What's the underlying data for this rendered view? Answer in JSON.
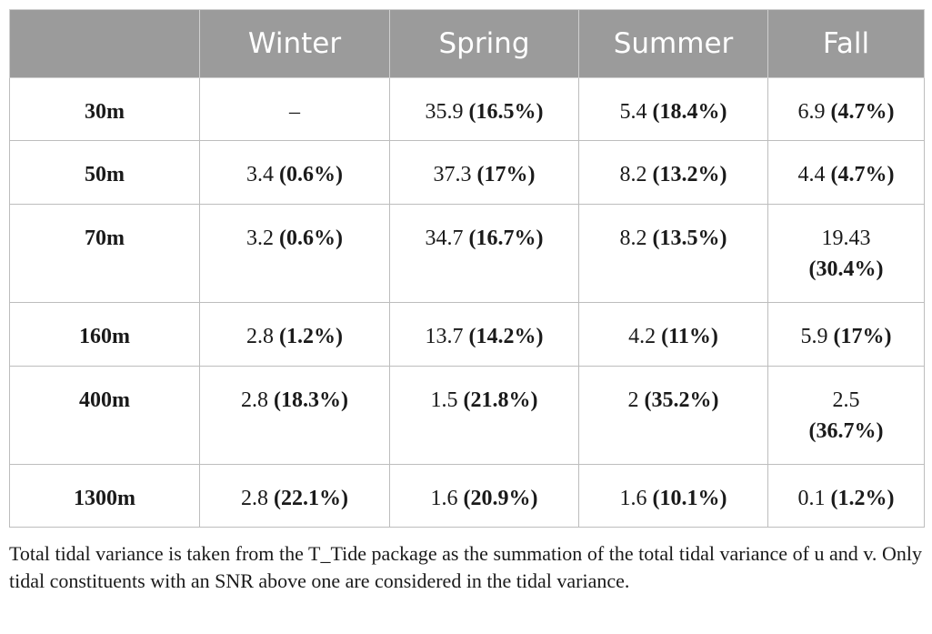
{
  "table": {
    "header": [
      "",
      "Winter",
      "Spring",
      "Summer",
      "Fall"
    ],
    "rows": [
      {
        "label": "30m",
        "cells": [
          {
            "value": "–",
            "pct": ""
          },
          {
            "value": "35.9",
            "pct": "(16.5%)"
          },
          {
            "value": "5.4",
            "pct": "(18.4%)"
          },
          {
            "value": "6.9",
            "pct": "(4.7%)"
          }
        ]
      },
      {
        "label": "50m",
        "cells": [
          {
            "value": "3.4",
            "pct": "(0.6%)"
          },
          {
            "value": "37.3",
            "pct": "(17%)"
          },
          {
            "value": "8.2",
            "pct": "(13.2%)"
          },
          {
            "value": "4.4",
            "pct": "(4.7%)"
          }
        ]
      },
      {
        "label": "70m",
        "cells": [
          {
            "value": "3.2",
            "pct": "(0.6%)"
          },
          {
            "value": "34.7",
            "pct": "(16.7%)"
          },
          {
            "value": "8.2",
            "pct": "(13.5%)"
          },
          {
            "value": "19.43",
            "pct": "(30.4%)"
          }
        ]
      },
      {
        "label": "160m",
        "cells": [
          {
            "value": "2.8",
            "pct": "(1.2%)"
          },
          {
            "value": "13.7",
            "pct": "(14.2%)"
          },
          {
            "value": "4.2",
            "pct": "(11%)"
          },
          {
            "value": "5.9",
            "pct": "(17%)"
          }
        ]
      },
      {
        "label": "400m",
        "cells": [
          {
            "value": "2.8",
            "pct": "(18.3%)"
          },
          {
            "value": "1.5",
            "pct": "(21.8%)"
          },
          {
            "value": "2",
            "pct": "(35.2%)"
          },
          {
            "value": "2.5",
            "pct": "(36.7%)"
          }
        ]
      },
      {
        "label": "1300m",
        "cells": [
          {
            "value": "2.8",
            "pct": "(22.1%)"
          },
          {
            "value": "1.6",
            "pct": "(20.9%)"
          },
          {
            "value": "1.6",
            "pct": "(10.1%)"
          },
          {
            "value": "0.1",
            "pct": "(1.2%)"
          }
        ]
      }
    ]
  },
  "footnote": "Total tidal variance is taken from the T_Tide package as the summation of the total tidal variance of u and v. Only tidal constituents with an SNR above one are considered in the tidal variance."
}
